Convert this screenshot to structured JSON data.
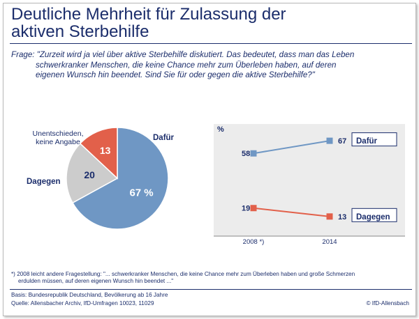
{
  "title_line1": "Deutliche Mehrheit für Zulassung der",
  "title_line2": "aktiven Sterbehilfe",
  "question_line1": "Frage: \"Zurzeit wird ja viel über aktive Sterbehilfe diskutiert. Das bedeutet, dass man das Leben",
  "question_line2": "schwerkranker Menschen, die keine Chance mehr zum Überleben haben, auf deren",
  "question_line3": "eigenen Wunsch hin beendet. Sind Sie für oder gegen die aktive Sterbehilfe?\"",
  "colors": {
    "dafuer": "#6f97c4",
    "dagegen": "#e2604a",
    "unentschieden": "#cccccc",
    "text": "#1b2d6b",
    "plot_bg": "#ececec"
  },
  "chart_data": [
    {
      "type": "pie",
      "slices": [
        {
          "name": "Dafür",
          "label": "Dafür",
          "value": 67,
          "value_label": "67 %"
        },
        {
          "name": "Unentschieden, keine Angabe",
          "label_line1": "Unentschieden,",
          "label_line2": "keine Angabe",
          "value": 20,
          "value_label": "20"
        },
        {
          "name": "Dagegen",
          "label": "Dagegen",
          "value": 13,
          "value_label": "13"
        }
      ]
    },
    {
      "type": "line",
      "unit_label": "%",
      "x": [
        "2008 *)",
        "2014"
      ],
      "ylim": [
        0,
        75
      ],
      "series": [
        {
          "name": "Dafür",
          "values": [
            58,
            67
          ],
          "value_labels": [
            "58",
            "67"
          ]
        },
        {
          "name": "Dagegen",
          "values": [
            19,
            13
          ],
          "value_labels": [
            "19",
            "13"
          ]
        }
      ]
    }
  ],
  "footnote_line1": "*) 2008 leicht andere Fragestellung: \"... schwerkranker Menschen, die keine Chance mehr zum Überleben haben und große Schmerzen",
  "footnote_line2": "erdulden müssen, auf deren eigenen Wunsch  hin beendet ...\"",
  "basis": "Basis: Bundesrepublik Deutschland, Bevölkerung ab 16 Jahre",
  "quelle": "Quelle: Allensbacher Archiv, IfD-Umfragen 10023, 11029",
  "copyright": "© IfD-Allensbach"
}
